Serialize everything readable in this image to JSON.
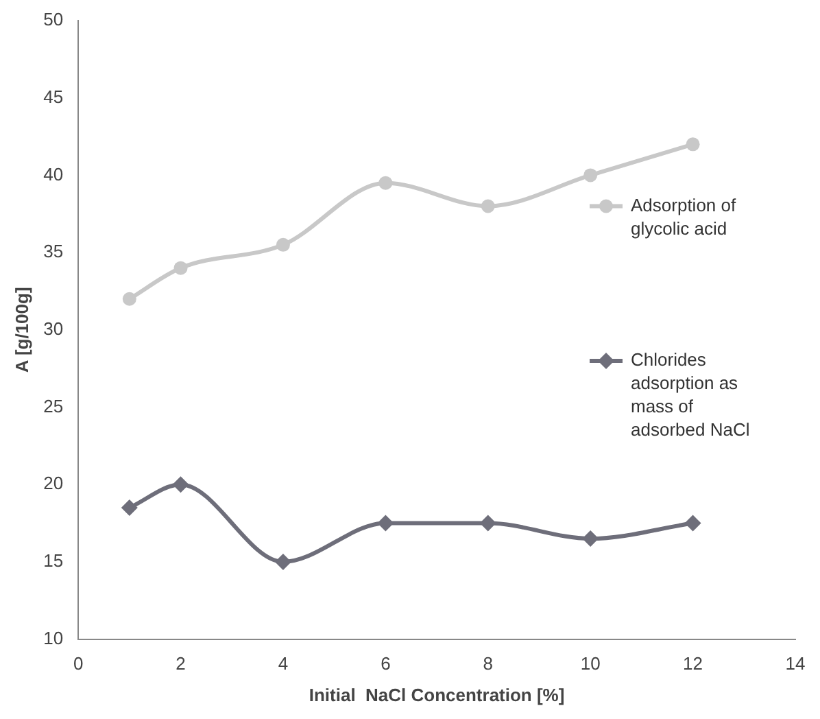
{
  "chart_data": {
    "type": "line",
    "xlabel": "Initial  NaCl Concentration [%]",
    "ylabel": "A [g/100g]",
    "x": [
      1,
      2,
      4,
      6,
      8,
      10,
      12
    ],
    "series": [
      {
        "name": "Adsorption of glycolic acid",
        "color": "#c8c8c8",
        "marker": "circle",
        "values": [
          32,
          34,
          35.5,
          39.5,
          38,
          40,
          42
        ]
      },
      {
        "name": "Chlorides adsorption as mass of adsorbed NaCl",
        "color": "#6e6e7a",
        "marker": "diamond",
        "values": [
          18.5,
          20,
          15,
          17.5,
          17.5,
          16.5,
          17.5
        ]
      }
    ],
    "xlim": [
      0,
      14
    ],
    "xticks": [
      0,
      2,
      4,
      6,
      8,
      10,
      12,
      14
    ],
    "ylim": [
      10,
      50
    ],
    "yticks": [
      10,
      15,
      20,
      25,
      30,
      35,
      40,
      45,
      50
    ],
    "grid": false,
    "legend": "right"
  }
}
